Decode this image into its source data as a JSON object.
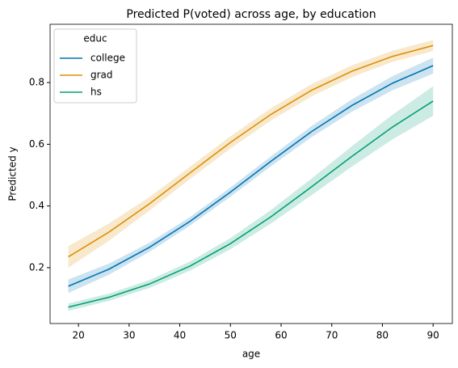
{
  "chart_data": {
    "type": "line",
    "title": "Predicted P(voted) across age, by education",
    "x_label": "age",
    "y_label": "Predicted y",
    "legend_title": "educ",
    "legend": "upper left",
    "x": [
      18,
      26,
      34,
      42,
      50,
      58,
      66,
      74,
      82,
      90
    ],
    "series": [
      {
        "name": "college",
        "color": "#0173b2",
        "values": [
          0.14,
          0.195,
          0.266,
          0.35,
          0.445,
          0.545,
          0.641,
          0.726,
          0.798,
          0.855
        ],
        "lower": [
          0.118,
          0.177,
          0.251,
          0.336,
          0.43,
          0.529,
          0.623,
          0.706,
          0.775,
          0.829
        ],
        "upper": [
          0.162,
          0.213,
          0.281,
          0.364,
          0.46,
          0.561,
          0.659,
          0.746,
          0.821,
          0.881
        ]
      },
      {
        "name": "grad",
        "color": "#de8f05",
        "values": [
          0.235,
          0.315,
          0.407,
          0.507,
          0.606,
          0.697,
          0.775,
          0.837,
          0.885,
          0.92
        ],
        "lower": [
          0.2,
          0.287,
          0.385,
          0.487,
          0.586,
          0.677,
          0.755,
          0.818,
          0.867,
          0.902
        ],
        "upper": [
          0.27,
          0.343,
          0.429,
          0.527,
          0.626,
          0.717,
          0.795,
          0.856,
          0.903,
          0.938
        ]
      },
      {
        "name": "hs",
        "color": "#029e73",
        "values": [
          0.072,
          0.104,
          0.147,
          0.205,
          0.278,
          0.365,
          0.462,
          0.561,
          0.656,
          0.74
        ],
        "lower": [
          0.06,
          0.092,
          0.134,
          0.19,
          0.26,
          0.343,
          0.435,
          0.528,
          0.616,
          0.692
        ],
        "upper": [
          0.084,
          0.116,
          0.16,
          0.22,
          0.296,
          0.387,
          0.489,
          0.594,
          0.696,
          0.788
        ]
      }
    ],
    "xlim": [
      14.4,
      93.8
    ],
    "xticks": [
      20,
      30,
      40,
      50,
      60,
      70,
      80,
      90
    ],
    "ylim": [
      0.019,
      0.989
    ],
    "yticks": [
      0.2,
      0.4,
      0.6,
      0.8
    ],
    "grid": false
  }
}
